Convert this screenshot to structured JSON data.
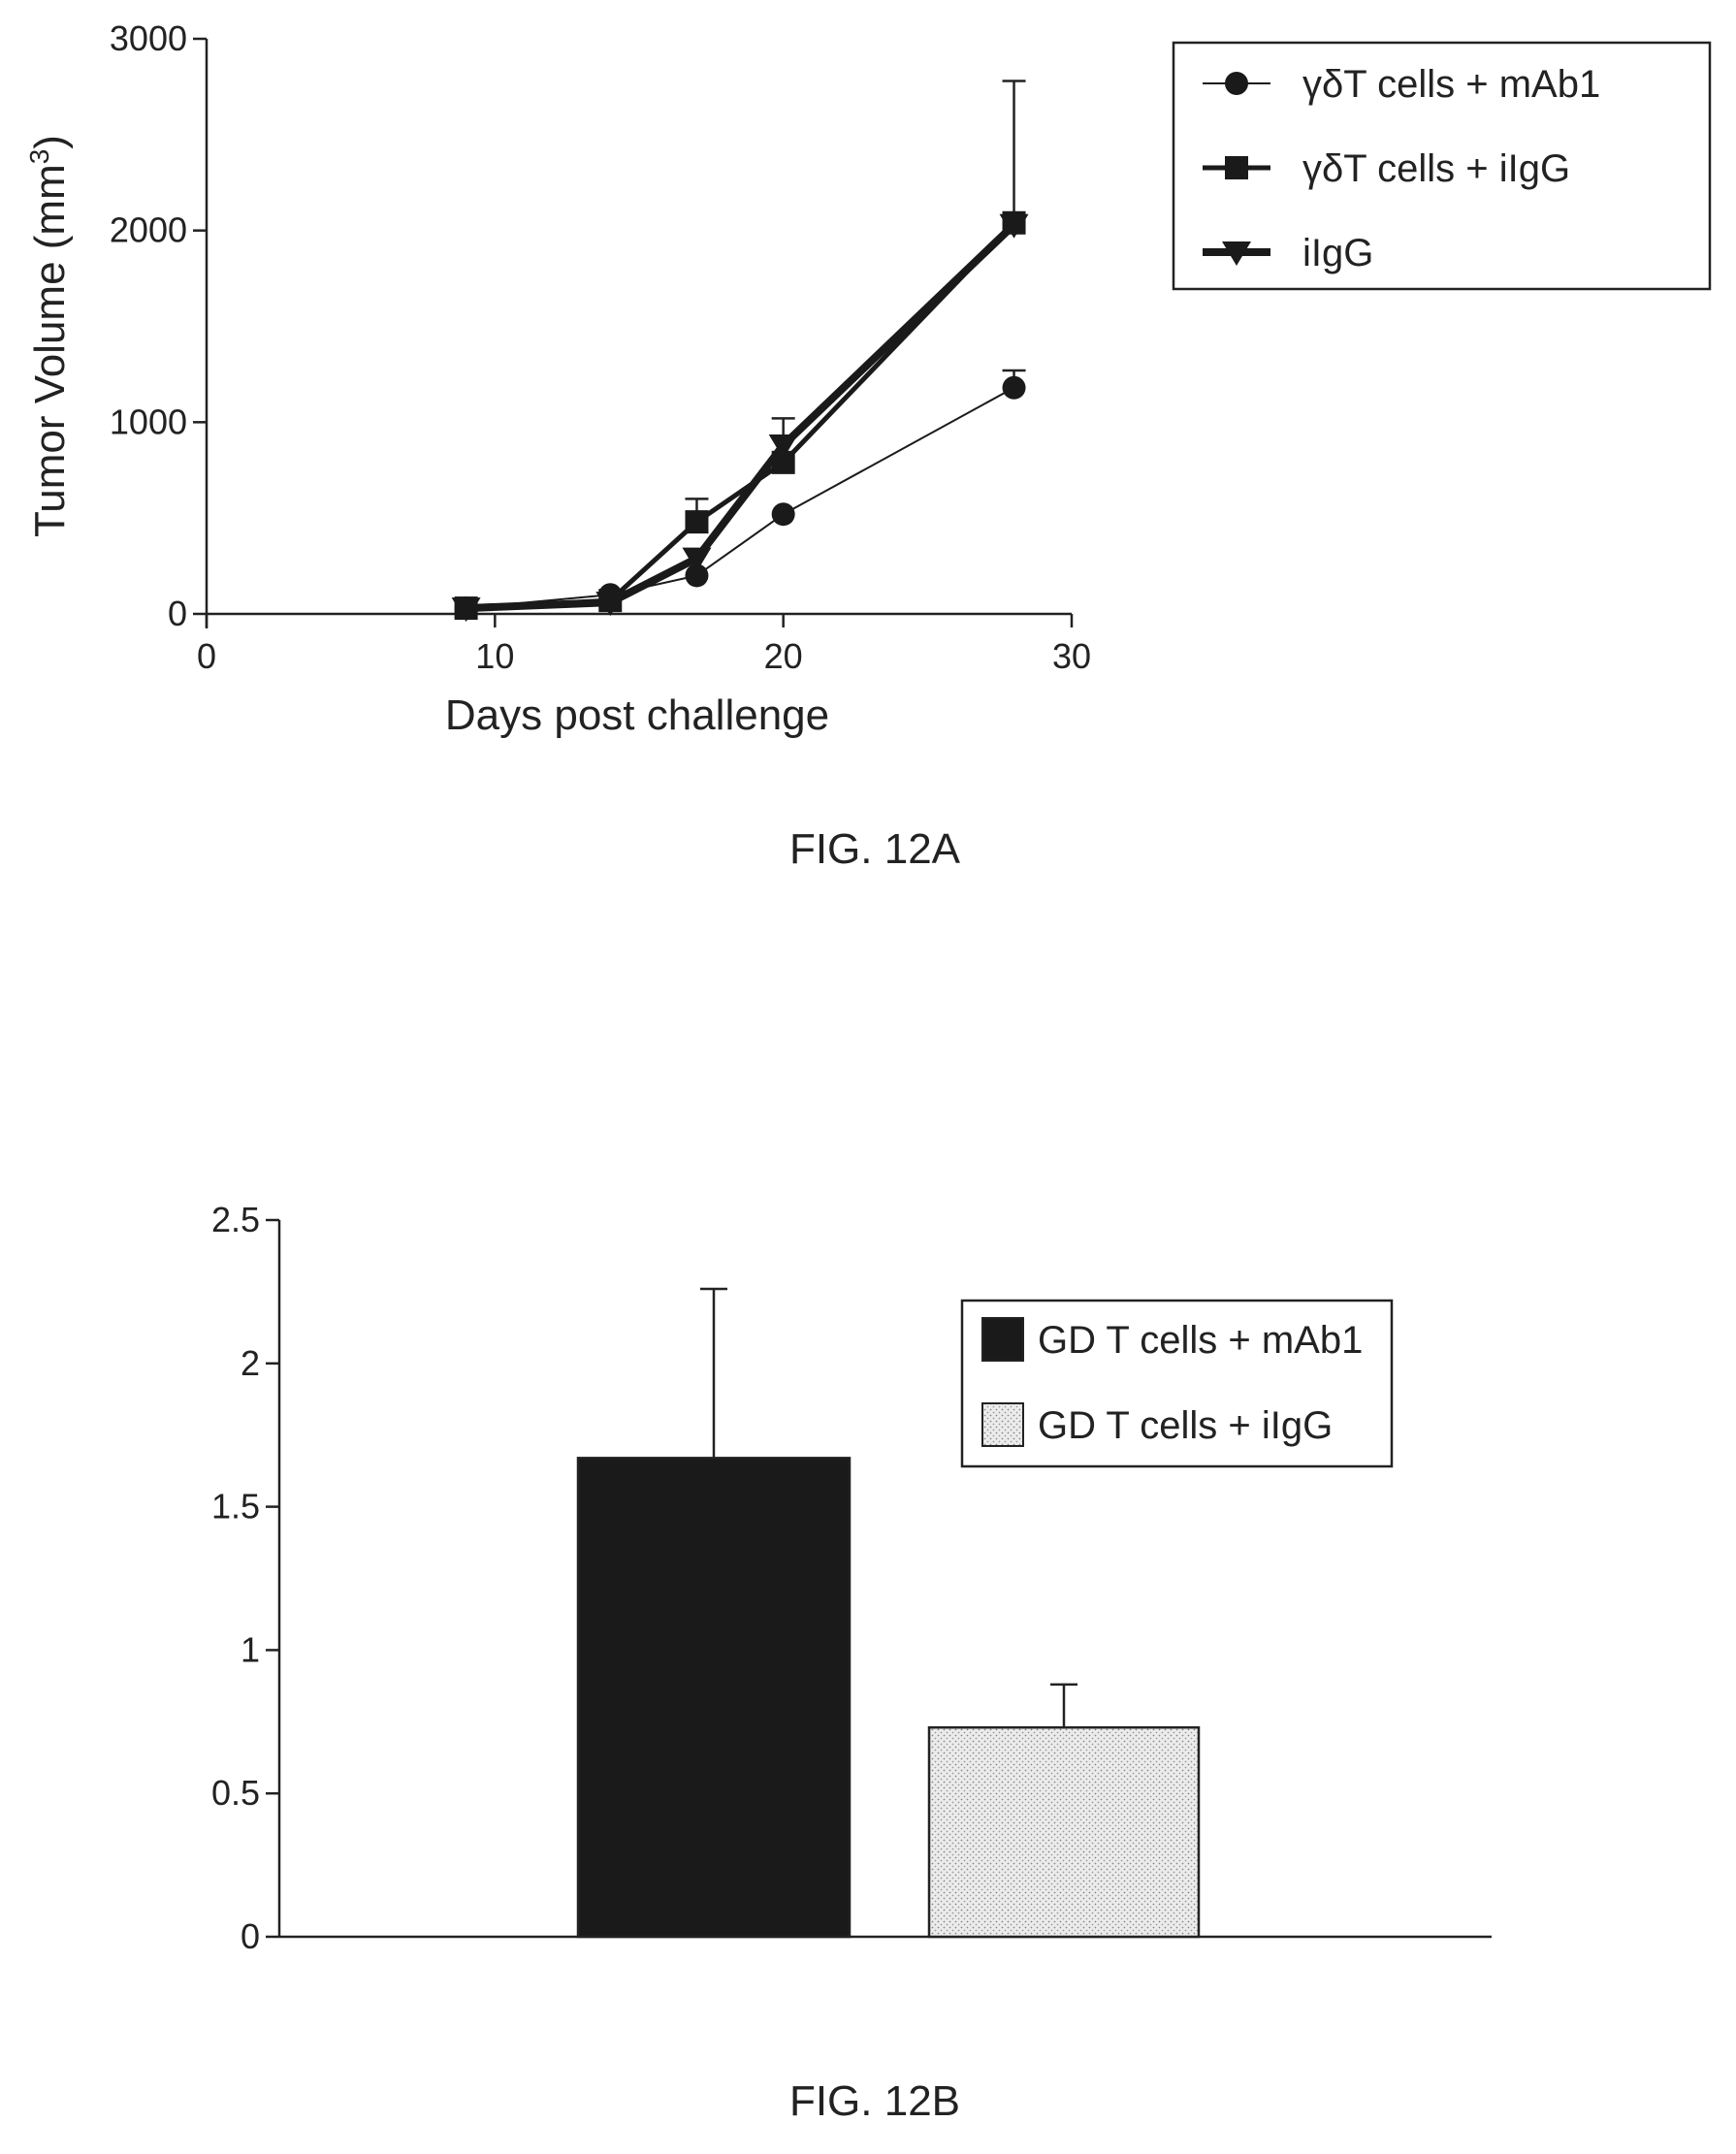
{
  "chart_data": [
    {
      "type": "line",
      "figure_label": "FIG. 12A",
      "xlabel": "Days post challenge",
      "ylabel": "Tumor Volume (mm",
      "ylabel_sup": "3",
      "ylabel_close": ")",
      "xlim": [
        0,
        30
      ],
      "ylim": [
        0,
        3000
      ],
      "xticks": [
        0,
        10,
        20,
        30
      ],
      "yticks": [
        0,
        1000,
        2000,
        3000
      ],
      "grid": false,
      "legend_position": "top-right",
      "series": [
        {
          "name": "γδT cells + mAb1",
          "marker": "circle",
          "style": "thin",
          "x": [
            9,
            14,
            17,
            20,
            28
          ],
          "y": [
            30,
            100,
            200,
            520,
            1180
          ],
          "err_upper": [
            0,
            0,
            0,
            0,
            1270
          ]
        },
        {
          "name": "γδT cells + iIgG",
          "marker": "square",
          "style": "medium",
          "x": [
            9,
            14,
            17,
            20,
            28
          ],
          "y": [
            30,
            70,
            480,
            790,
            2040
          ],
          "err_upper": [
            0,
            0,
            600,
            0,
            2780
          ]
        },
        {
          "name": "iIgG",
          "marker": "triangle-down",
          "style": "thick",
          "x": [
            9,
            14,
            17,
            20,
            28
          ],
          "y": [
            30,
            60,
            290,
            880,
            2030
          ],
          "err_upper": [
            0,
            0,
            0,
            1020,
            0
          ]
        }
      ]
    },
    {
      "type": "bar",
      "figure_label": "FIG. 12B",
      "xlabel": "",
      "ylabel": "",
      "ylim": [
        0,
        2.5
      ],
      "yticks": [
        "0",
        "0.5",
        "1",
        "1.5",
        "2",
        "2.5"
      ],
      "ytick_values": [
        0,
        0.5,
        1,
        1.5,
        2,
        2.5
      ],
      "grid": false,
      "legend_position": "top-right",
      "series": [
        {
          "name": "GD T cells + mAb1",
          "value": 1.67,
          "err_upper": 2.26,
          "fill": "#1a1a1a"
        },
        {
          "name": "GD T cells + iIgG",
          "value": 0.73,
          "err_upper": 0.88,
          "fill": "#e6e6e6"
        }
      ]
    }
  ]
}
